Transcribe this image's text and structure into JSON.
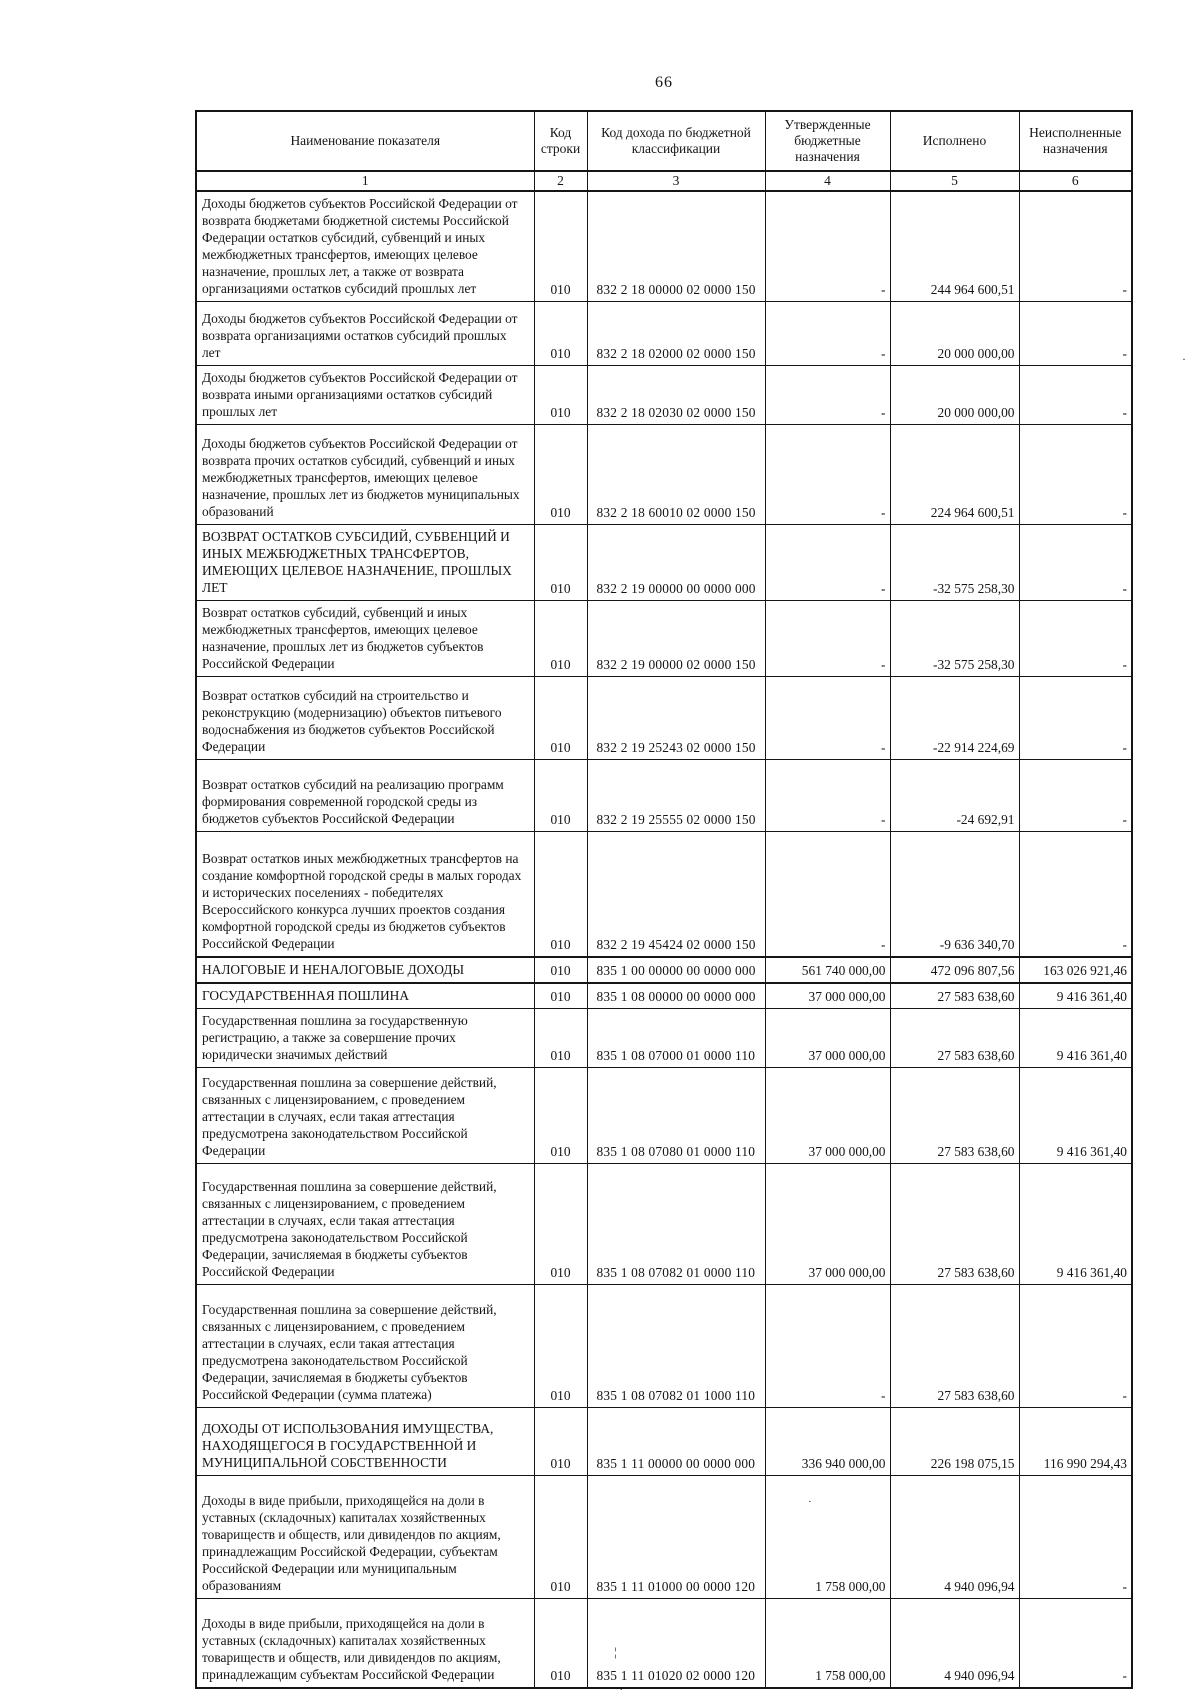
{
  "page": {
    "number": "66"
  },
  "table": {
    "headers": {
      "name": "Наименование показателя",
      "line_code": "Код строки",
      "classification": "Код дохода по бюджетной классификации",
      "approved": "Утвержденные бюджетные назначения",
      "executed": "Исполнено",
      "unfulfilled": "Неисполненные назначения"
    },
    "column_numbers": {
      "c1": "1",
      "c2": "2",
      "c3": "3",
      "c4": "4",
      "c5": "5",
      "c6": "6"
    },
    "rows": [
      {
        "name": "Доходы бюджетов субъектов Российской Федерации от возврата бюджетами бюджетной системы Российской Федерации остатков субсидий, субвенций и иных межбюджетных трансфертов, имеющих целевое назначение, прошлых лет, а также от возврата организациями остатков субсидий прошлых лет",
        "line_code": "010",
        "classification": "832 2 18 00000 02 0000 150",
        "approved": "-",
        "executed": "244 964 600,51",
        "unfulfilled": "-"
      },
      {
        "name": "Доходы бюджетов субъектов Российской Федерации от возврата организациями остатков субсидий прошлых лет",
        "line_code": "010",
        "classification": "832 2 18 02000 02 0000 150",
        "approved": "-",
        "executed": "20 000 000,00",
        "unfulfilled": "-"
      },
      {
        "name": "Доходы бюджетов субъектов Российской Федерации от возврата иными организациями остатков субсидий прошлых лет",
        "line_code": "010",
        "classification": "832 2 18 02030 02 0000 150",
        "approved": "-",
        "executed": "20 000 000,00",
        "unfulfilled": "-"
      },
      {
        "name": "Доходы бюджетов субъектов Российской Федерации от возврата прочих остатков субсидий, субвенций и иных межбюджетных трансфертов, имеющих целевое назначение, прошлых лет из бюджетов муниципальных образований",
        "line_code": "010",
        "classification": "832 2 18 60010 02 0000 150",
        "approved": "-",
        "executed": "224 964 600,51",
        "unfulfilled": "-"
      },
      {
        "name": "ВОЗВРАТ ОСТАТКОВ СУБСИДИЙ, СУБВЕНЦИЙ И ИНЫХ МЕЖБЮДЖЕТНЫХ ТРАНСФЕРТОВ, ИМЕЮЩИХ ЦЕЛЕВОЕ НАЗНАЧЕНИЕ, ПРОШЛЫХ ЛЕТ",
        "line_code": "010",
        "classification": "832 2 19 00000 00 0000 000",
        "approved": "-",
        "executed": "-32 575 258,30",
        "unfulfilled": "-"
      },
      {
        "name": "Возврат остатков субсидий, субвенций и иных межбюджетных трансфертов, имеющих целевое назначение, прошлых лет из бюджетов субъектов Российской Федерации",
        "line_code": "010",
        "classification": "832 2 19 00000 02 0000 150",
        "approved": "-",
        "executed": "-32 575 258,30",
        "unfulfilled": "-"
      },
      {
        "name": "Возврат остатков субсидий на строительство и реконструкцию (модернизацию) объектов питьевого водоснабжения из бюджетов субъектов Российской Федерации",
        "line_code": "010",
        "classification": "832 2 19 25243 02 0000 150",
        "approved": "-",
        "executed": "-22 914 224,69",
        "unfulfilled": "-"
      },
      {
        "name": "Возврат остатков субсидий на реализацию программ формирования современной городской среды из бюджетов субъектов Российской Федерации",
        "line_code": "010",
        "classification": "832 2 19 25555 02 0000 150",
        "approved": "-",
        "executed": "-24 692,91",
        "unfulfilled": "-"
      },
      {
        "name": "Возврат остатков иных межбюджетных трансфертов на создание комфортной городской среды в малых городах и исторических поселениях - победителях Всероссийского конкурса лучших проектов создания комфортной городской среды из бюджетов субъектов Российской Федерации",
        "line_code": "010",
        "classification": "832 2 19 45424 02 0000 150",
        "approved": "-",
        "executed": "-9 636 340,70",
        "unfulfilled": "-"
      },
      {
        "name": "НАЛОГОВЫЕ И НЕНАЛОГОВЫЕ ДОХОДЫ",
        "line_code": "010",
        "classification": "835 1 00 00000 00 0000 000",
        "approved": "561 740 000,00",
        "executed": "472 096 807,56",
        "unfulfilled": "163 026 921,46"
      },
      {
        "name": "ГОСУДАРСТВЕННАЯ ПОШЛИНА",
        "line_code": "010",
        "classification": "835 1 08 00000 00 0000 000",
        "approved": "37 000 000,00",
        "executed": "27 583 638,60",
        "unfulfilled": "9 416 361,40"
      },
      {
        "name": "Государственная пошлина за государственную регистрацию, а также за совершение прочих юридически значимых действий",
        "line_code": "010",
        "classification": "835 1 08 07000 01 0000 110",
        "approved": "37 000 000,00",
        "executed": "27 583 638,60",
        "unfulfilled": "9 416 361,40"
      },
      {
        "name": "Государственная пошлина за совершение действий, связанных с лицензированием, с проведением аттестации в случаях, если такая аттестация предусмотрена законодательством Российской Федерации",
        "line_code": "010",
        "classification": "835 1 08 07080 01 0000 110",
        "approved": "37 000 000,00",
        "executed": "27 583 638,60",
        "unfulfilled": "9 416 361,40"
      },
      {
        "name": "Государственная пошлина за совершение действий, связанных с лицензированием, с проведением аттестации в случаях, если такая аттестация предусмотрена законодательством Российской Федерации, зачисляемая в бюджеты субъектов Российской Федерации",
        "line_code": "010",
        "classification": "835 1 08 07082 01 0000 110",
        "approved": "37 000 000,00",
        "executed": "27 583 638,60",
        "unfulfilled": "9 416 361,40"
      },
      {
        "name": "Государственная пошлина за совершение действий, связанных с лицензированием, с проведением аттестации в случаях, если такая аттестация предусмотрена законодательством Российской Федерации, зачисляемая в бюджеты субъектов Российской Федерации (сумма платежа)",
        "line_code": "010",
        "classification": "835 1 08 07082 01 1000 110",
        "approved": "-",
        "executed": "27 583 638,60",
        "unfulfilled": "-"
      },
      {
        "name": "ДОХОДЫ ОТ ИСПОЛЬЗОВАНИЯ ИМУЩЕСТВА, НАХОДЯЩЕГОСЯ В ГОСУДАРСТВЕННОЙ И МУНИЦИПАЛЬНОЙ СОБСТВЕННОСТИ",
        "line_code": "010",
        "classification": "835 1 11 00000 00 0000 000",
        "approved": "336 940 000,00",
        "executed": "226 198 075,15",
        "unfulfilled": "116 990 294,43"
      },
      {
        "name": "Доходы в виде прибыли, приходящейся на доли в уставных (складочных) капиталах хозяйственных товариществ и обществ, или дивидендов по акциям, принадлежащим Российской Федерации, субъектам Российской Федерации или муниципальным образованиям",
        "line_code": "010",
        "classification": "835 1 11 01000 00 0000 120",
        "approved": "1 758 000,00",
        "executed": "4 940 096,94",
        "unfulfilled": "-"
      },
      {
        "name": "Доходы в виде прибыли, приходящейся на доли в уставных (складочных) капиталах хозяйственных товариществ и обществ, или дивидендов по акциям, принадлежащим субъектам Российской Федерации",
        "line_code": "010",
        "classification": "835 1 11 01020 02 0000 120",
        "approved": "1 758 000,00",
        "executed": "4 940 096,94",
        "unfulfilled": "-"
      }
    ]
  },
  "artifacts": {
    "dot": "·",
    "tick": "¦",
    "small_dot": "."
  }
}
